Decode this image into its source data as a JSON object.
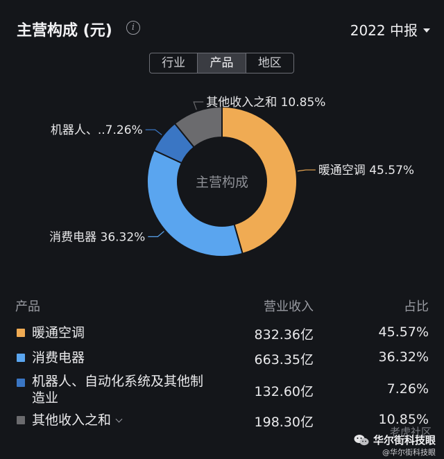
{
  "header": {
    "title": "主营构成 (元)",
    "info_icon": "i",
    "period": "2022 中报"
  },
  "tabs": [
    {
      "label": "行业",
      "active": false
    },
    {
      "label": "产品",
      "active": true
    },
    {
      "label": "地区",
      "active": false
    }
  ],
  "chart_data": {
    "type": "pie",
    "center_label": "主营构成",
    "slices": [
      {
        "label": "暖通空调",
        "value": 45.57,
        "color": "#f0ab53",
        "callout": "暖通空调 45.57%"
      },
      {
        "label": "消费电器",
        "value": 36.32,
        "color": "#5aa5ef",
        "callout": "消费电器 36.32%"
      },
      {
        "label": "机器人、自动化系统及其他制造业",
        "value": 7.26,
        "color": "#3a76c4",
        "callout": "机器人、..7.26%"
      },
      {
        "label": "其他收入之和",
        "value": 10.85,
        "color": "#6b6b6e",
        "callout": "其他收入之和 10.85%"
      }
    ]
  },
  "table": {
    "headers": {
      "name": "产品",
      "revenue": "营业收入",
      "share": "占比"
    },
    "rows": [
      {
        "name": "暖通空调",
        "revenue": "832.36亿",
        "share": "45.57%",
        "color": "#f0ab53"
      },
      {
        "name": "消费电器",
        "revenue": "663.35亿",
        "share": "36.32%",
        "color": "#5aa5ef"
      },
      {
        "name_line1": "机器人、自动化系统及其他制",
        "name_line2": "造业",
        "revenue": "132.60亿",
        "share": "7.26%",
        "color": "#3a76c4"
      },
      {
        "name": "其他收入之和",
        "revenue": "198.30亿",
        "share": "10.85%",
        "color": "#6b6b6e"
      }
    ]
  },
  "watermark": {
    "line1": "老虎社区",
    "line2": "华尔街科技眼",
    "line3": "@华尔街科技眼"
  }
}
